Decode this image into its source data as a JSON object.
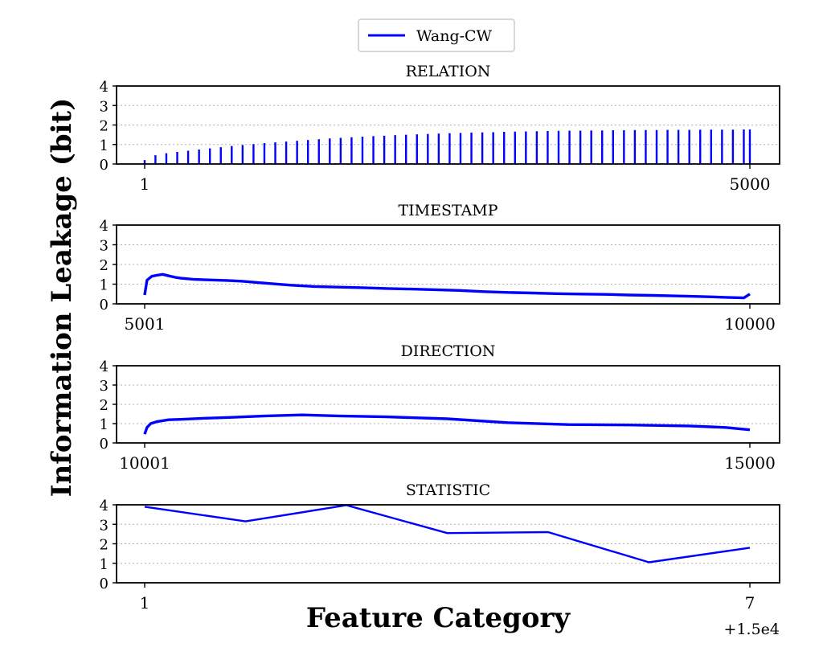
{
  "figure": {
    "ylabel": "Information Leakage (bit)",
    "xlabel": "Feature Category",
    "legend": {
      "label": "Wang-CW",
      "color": "#0000ff",
      "placement": "top-center"
    }
  },
  "chart_data": [
    {
      "type": "bar",
      "title": "RELATION",
      "series_color": "#0000ff",
      "xlim": [
        1,
        5000
      ],
      "ylim": [
        0,
        4
      ],
      "yticks": [
        0,
        1,
        2,
        3,
        4
      ],
      "xticks": [
        {
          "value": 1,
          "label": "1"
        },
        {
          "value": 5000,
          "label": "5000"
        }
      ],
      "grid": "y-dotted",
      "x": [
        1,
        90,
        180,
        270,
        360,
        450,
        540,
        630,
        720,
        810,
        900,
        990,
        1080,
        1170,
        1260,
        1350,
        1440,
        1530,
        1620,
        1710,
        1800,
        1890,
        1980,
        2070,
        2160,
        2250,
        2340,
        2430,
        2520,
        2610,
        2700,
        2790,
        2880,
        2970,
        3060,
        3150,
        3240,
        3330,
        3420,
        3510,
        3600,
        3690,
        3780,
        3870,
        3960,
        4050,
        4140,
        4230,
        4320,
        4410,
        4500,
        4590,
        4680,
        4770,
        4860,
        4950,
        5000
      ],
      "values": [
        0.2,
        0.45,
        0.55,
        0.62,
        0.68,
        0.74,
        0.8,
        0.86,
        0.92,
        0.97,
        1.02,
        1.07,
        1.11,
        1.15,
        1.19,
        1.23,
        1.27,
        1.31,
        1.34,
        1.37,
        1.4,
        1.43,
        1.45,
        1.48,
        1.5,
        1.52,
        1.54,
        1.56,
        1.58,
        1.59,
        1.61,
        1.62,
        1.63,
        1.65,
        1.66,
        1.67,
        1.68,
        1.69,
        1.7,
        1.71,
        1.71,
        1.72,
        1.72,
        1.73,
        1.73,
        1.74,
        1.74,
        1.74,
        1.75,
        1.75,
        1.75,
        1.76,
        1.76,
        1.76,
        1.76,
        1.77,
        1.77
      ]
    },
    {
      "type": "line",
      "title": "TIMESTAMP",
      "series_color": "#0000ff",
      "xlim": [
        5001,
        10000
      ],
      "ylim": [
        0,
        4
      ],
      "yticks": [
        0,
        1,
        2,
        3,
        4
      ],
      "xticks": [
        {
          "value": 5001,
          "label": "5001"
        },
        {
          "value": 10000,
          "label": "10000"
        }
      ],
      "grid": "y-dotted",
      "x": [
        5001,
        5020,
        5060,
        5100,
        5150,
        5200,
        5250,
        5300,
        5400,
        5500,
        5600,
        5700,
        5800,
        5900,
        6000,
        6200,
        6400,
        6600,
        6800,
        7000,
        7200,
        7400,
        7600,
        7800,
        8000,
        8200,
        8400,
        8600,
        8800,
        9000,
        9200,
        9400,
        9600,
        9800,
        9950,
        10000
      ],
      "values": [
        0.45,
        1.2,
        1.4,
        1.45,
        1.5,
        1.42,
        1.35,
        1.3,
        1.25,
        1.22,
        1.2,
        1.18,
        1.15,
        1.1,
        1.05,
        0.95,
        0.88,
        0.85,
        0.82,
        0.78,
        0.75,
        0.72,
        0.68,
        0.62,
        0.58,
        0.55,
        0.52,
        0.5,
        0.48,
        0.45,
        0.43,
        0.4,
        0.37,
        0.33,
        0.3,
        0.5
      ]
    },
    {
      "type": "line",
      "title": "DIRECTION",
      "series_color": "#0000ff",
      "xlim": [
        10001,
        15000
      ],
      "ylim": [
        0,
        4
      ],
      "yticks": [
        0,
        1,
        2,
        3,
        4
      ],
      "xticks": [
        {
          "value": 10001,
          "label": "10001"
        },
        {
          "value": 15000,
          "label": "15000"
        }
      ],
      "grid": "y-dotted",
      "x": [
        10001,
        10020,
        10050,
        10100,
        10200,
        10300,
        10500,
        10700,
        11000,
        11300,
        11600,
        12000,
        12500,
        13000,
        13500,
        14000,
        14500,
        14800,
        15000
      ],
      "values": [
        0.45,
        0.8,
        1.0,
        1.1,
        1.2,
        1.22,
        1.28,
        1.32,
        1.4,
        1.45,
        1.4,
        1.35,
        1.25,
        1.05,
        0.95,
        0.93,
        0.88,
        0.8,
        0.68
      ]
    },
    {
      "type": "line",
      "title": "STATISTIC",
      "series_color": "#0000ff",
      "xlim": [
        15001,
        15007
      ],
      "ylim": [
        0,
        4
      ],
      "yticks": [
        0,
        1,
        2,
        3,
        4
      ],
      "xticks": [
        {
          "value": 15001,
          "label": "1"
        },
        {
          "value": 15007,
          "label": "7"
        }
      ],
      "offset_label": "+1.5e4",
      "grid": "y-dotted",
      "x": [
        15001,
        15002,
        15003,
        15004,
        15005,
        15006,
        15007
      ],
      "values": [
        3.9,
        3.15,
        3.98,
        2.55,
        2.6,
        1.05,
        1.8
      ]
    }
  ]
}
